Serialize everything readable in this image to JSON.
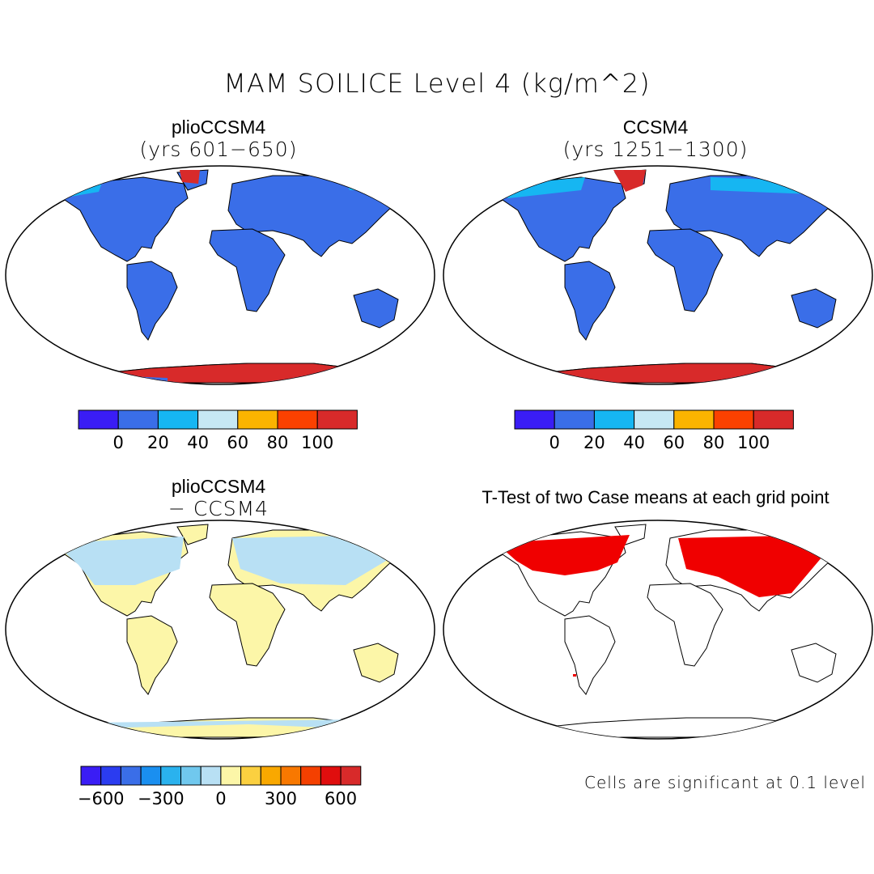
{
  "title": "MAM SOILICE Level 4 (kg/m^2)",
  "panels": [
    {
      "name": "plioCCSM4",
      "period": "(yrs 601−650)"
    },
    {
      "name": "CCSM4",
      "period": "(yrs 1251−1300)"
    },
    {
      "name": "plioCCSM4",
      "subtitle": "− CCSM4"
    },
    {
      "name": "T-Test of two Case means at each grid point"
    }
  ],
  "colorbar_top": {
    "colors": [
      "#3a1df5",
      "#3a6ee8",
      "#16b6f2",
      "#c6e8f4",
      "#fbb400",
      "#fb4100",
      "#d82a2a"
    ],
    "labels": [
      "0",
      "20",
      "40",
      "60",
      "80",
      "100"
    ]
  },
  "colorbar_diff": {
    "colors": [
      "#3a1df5",
      "#2b3cf0",
      "#3a6ee8",
      "#1a8ff0",
      "#2ab2ee",
      "#70c8ee",
      "#b8e0f4",
      "#fcf6a8",
      "#fbd040",
      "#f9a800",
      "#f87800",
      "#f44000",
      "#e00e0e",
      "#d82a2a"
    ],
    "labels": [
      "−600",
      "−300",
      "0",
      "300",
      "600"
    ]
  },
  "significance_note": "Cells are significant at 0.1 level"
}
